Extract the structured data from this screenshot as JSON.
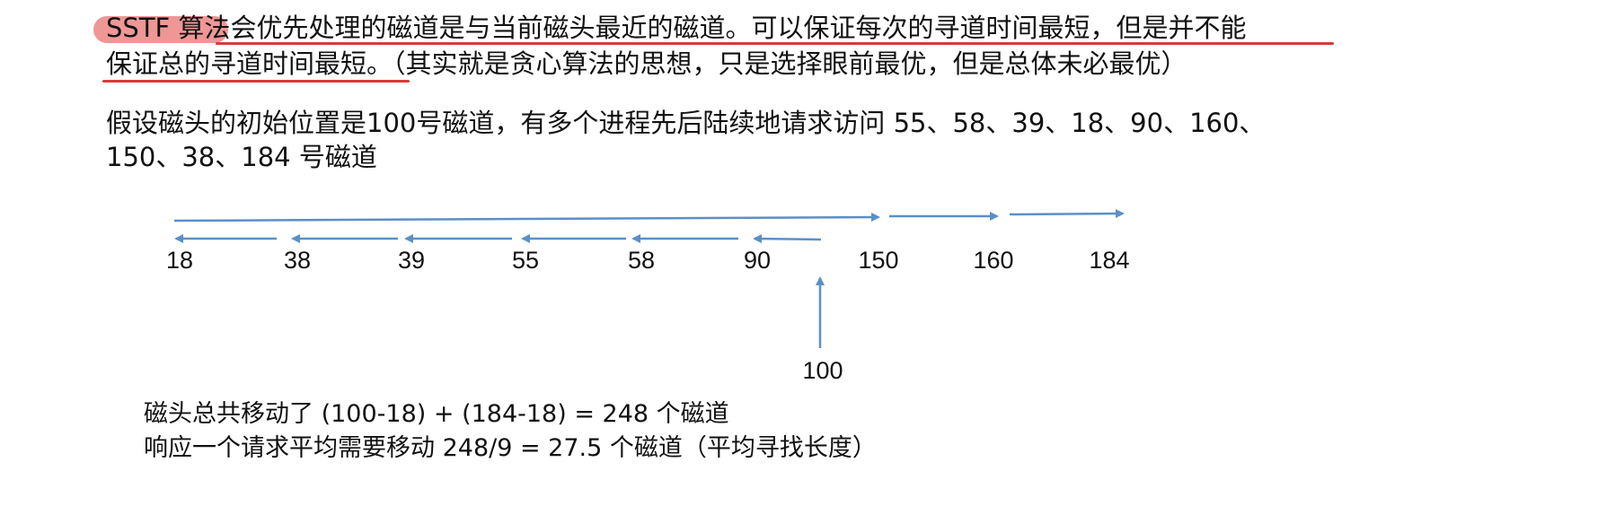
{
  "intro": {
    "line1_a": "SSTF 算法",
    "line1_b": "会优先处理的磁道是与当前磁头最近的磁道。可以保证每次的寻道时间最短，但是并不能",
    "line2_a": "保证总的寻道时间最短。",
    "line2_b": "（其实就是贪心算法的思想，只是选择眼前最优，但是总体未必最优）"
  },
  "problem": {
    "line1": "假设磁头的初始位置是100号磁道，有多个进程先后陆续地请求访问  55、58、39、18、90、160、",
    "line2": "150、38、184  号磁道"
  },
  "diagram": {
    "track_labels": [
      "18",
      "38",
      "39",
      "55",
      "58",
      "90",
      "150",
      "160",
      "184"
    ],
    "start_label": "100",
    "arrow_color": "#5b8fc7",
    "highlight_color": "#e0413f"
  },
  "result": {
    "line1": "磁头总共移动了  (100-18)  + (184-18)  = 248 个磁道",
    "line2": "响应一个请求平均需要移动  248/9  = 27.5  个磁道（平均寻找长度）"
  }
}
